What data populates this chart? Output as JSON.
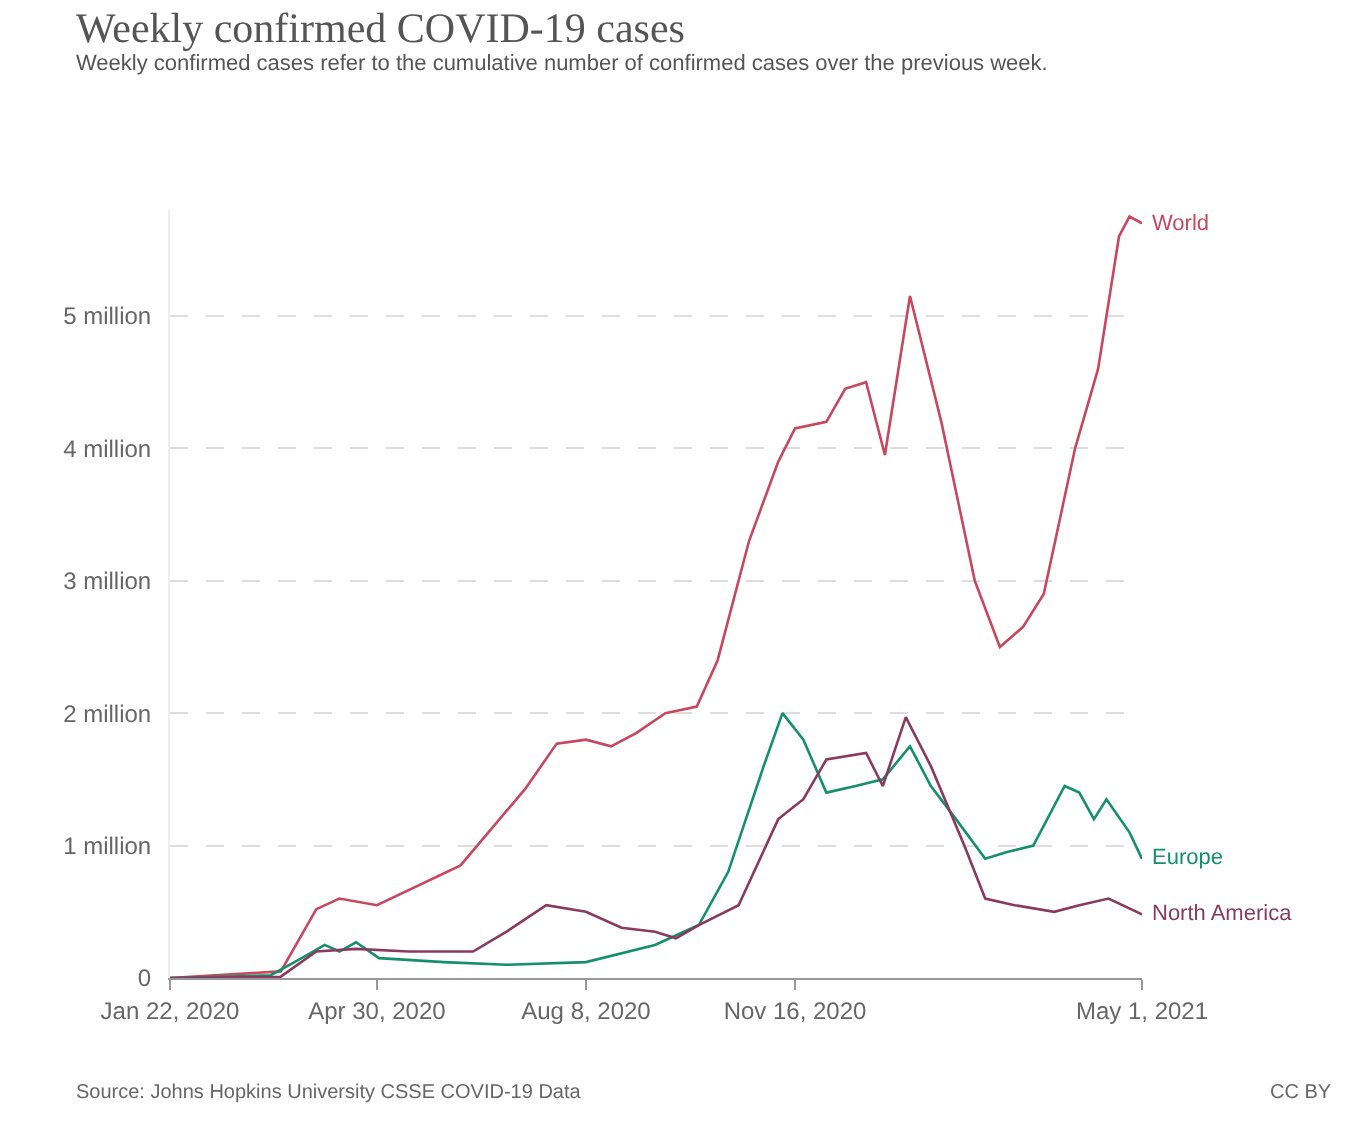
{
  "chart_data": {
    "type": "line",
    "title": "Weekly confirmed COVID-19 cases",
    "subtitle": "Weekly confirmed cases refer to the cumulative number of confirmed cases over the previous week.",
    "annotations": [
      "Source: Johns Hopkins University CSSE COVID-19 Data",
      "CC BY"
    ],
    "xlim": [
      "2020-01-22",
      "2021-05-01"
    ],
    "xticks": [
      {
        "value": "2020-01-22",
        "label": "Jan 22, 2020"
      },
      {
        "value": "2020-04-30",
        "label": "Apr 30, 2020"
      },
      {
        "value": "2020-08-08",
        "label": "Aug 8, 2020"
      },
      {
        "value": "2020-11-16",
        "label": "Nov 16, 2020"
      },
      {
        "value": "2021-05-01",
        "label": "May 1, 2021"
      }
    ],
    "ylim": [
      0,
      5800000
    ],
    "yticks": [
      0,
      {
        "value": 1000000,
        "label": "1 million"
      },
      {
        "value": 2000000,
        "label": "2 million"
      },
      {
        "value": 3000000,
        "label": "3 million"
      },
      {
        "value": 4000000,
        "label": "4 million"
      },
      {
        "value": 5000000,
        "label": "5 million"
      }
    ],
    "grid": "y",
    "legend": false,
    "marker": "none",
    "line_style": "solid",
    "series": [
      {
        "name": "World",
        "color": "#c8475e",
        "x": [
          "2020-01-22",
          "2020-03-15",
          "2020-04-01",
          "2020-04-12",
          "2020-04-30",
          "2020-06-09",
          "2020-07-10",
          "2020-07-25",
          "2020-08-08",
          "2020-08-20",
          "2020-09-01",
          "2020-09-15",
          "2020-09-30",
          "2020-10-10",
          "2020-10-25",
          "2020-11-08",
          "2020-11-16",
          "2020-12-01",
          "2020-12-10",
          "2020-12-20",
          "2020-12-29",
          "2021-01-10",
          "2021-01-25",
          "2021-02-10",
          "2021-02-22",
          "2021-03-05",
          "2021-03-15",
          "2021-03-30",
          "2021-04-10",
          "2021-04-20",
          "2021-04-25",
          "2021-05-01"
        ],
        "values": [
          0,
          50000,
          520000,
          600000,
          550000,
          850000,
          1430000,
          1770000,
          1800000,
          1750000,
          1850000,
          2000000,
          2050000,
          2400000,
          3300000,
          3900000,
          4150000,
          4200000,
          4450000,
          4500000,
          3950000,
          5150000,
          4200000,
          3000000,
          2500000,
          2650000,
          2900000,
          4000000,
          4600000,
          5600000,
          5750000,
          5700000
        ]
      },
      {
        "name": "Europe",
        "color": "#14906c",
        "x": [
          "2020-01-22",
          "2020-03-10",
          "2020-03-25",
          "2020-04-05",
          "2020-04-12",
          "2020-04-20",
          "2020-05-01",
          "2020-06-01",
          "2020-07-01",
          "2020-08-08",
          "2020-09-10",
          "2020-10-01",
          "2020-10-15",
          "2020-11-01",
          "2020-11-10",
          "2020-11-20",
          "2020-12-01",
          "2020-12-15",
          "2020-12-28",
          "2021-01-10",
          "2021-01-20",
          "2021-02-01",
          "2021-02-15",
          "2021-02-25",
          "2021-03-10",
          "2021-03-25",
          "2021-04-01",
          "2021-04-08",
          "2021-04-14",
          "2021-04-25",
          "2021-05-01"
        ],
        "values": [
          0,
          20000,
          150000,
          250000,
          200000,
          270000,
          150000,
          120000,
          100000,
          120000,
          250000,
          400000,
          800000,
          1600000,
          2000000,
          1800000,
          1400000,
          1450000,
          1500000,
          1750000,
          1450000,
          1200000,
          900000,
          950000,
          1000000,
          1450000,
          1400000,
          1200000,
          1350000,
          1100000,
          900000
        ]
      },
      {
        "name": "North America",
        "color": "#8a3a5e",
        "x": [
          "2020-01-22",
          "2020-03-15",
          "2020-04-01",
          "2020-04-20",
          "2020-05-15",
          "2020-06-15",
          "2020-07-01",
          "2020-07-20",
          "2020-08-08",
          "2020-08-25",
          "2020-09-10",
          "2020-09-20",
          "2020-10-01",
          "2020-10-20",
          "2020-11-08",
          "2020-11-20",
          "2020-12-01",
          "2020-12-20",
          "2020-12-28",
          "2021-01-08",
          "2021-01-20",
          "2021-02-05",
          "2021-02-15",
          "2021-03-01",
          "2021-03-20",
          "2021-04-01",
          "2021-04-15",
          "2021-05-01"
        ],
        "values": [
          0,
          10000,
          200000,
          220000,
          200000,
          200000,
          350000,
          550000,
          500000,
          380000,
          350000,
          300000,
          400000,
          550000,
          1200000,
          1350000,
          1650000,
          1700000,
          1450000,
          1970000,
          1600000,
          1000000,
          600000,
          550000,
          500000,
          550000,
          600000,
          480000
        ]
      }
    ]
  }
}
